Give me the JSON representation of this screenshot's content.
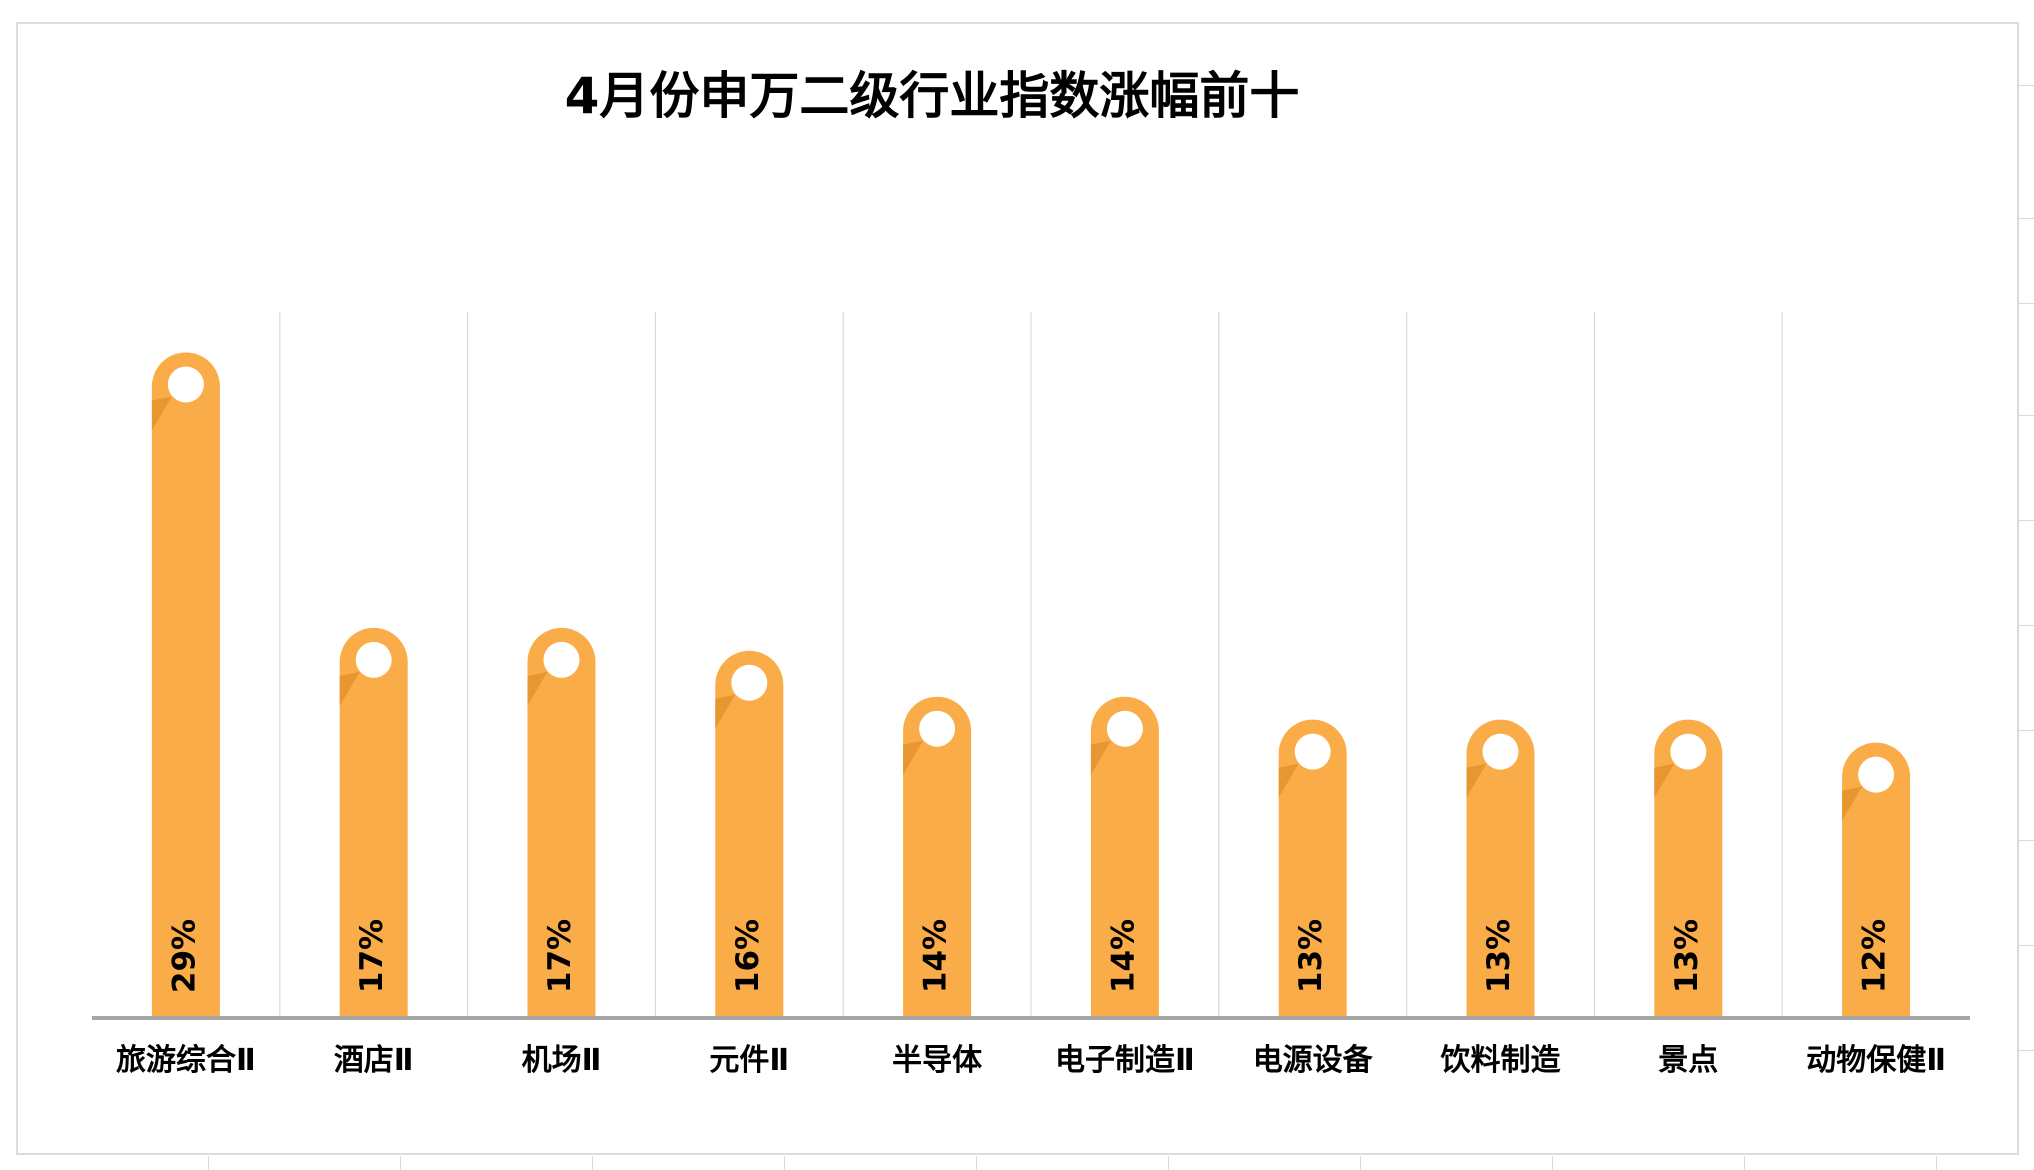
{
  "chart_data": {
    "type": "bar",
    "title": "4月份申万二级行业指数涨幅前十",
    "categories": [
      "旅游综合Ⅱ",
      "酒店Ⅱ",
      "机场Ⅱ",
      "元件Ⅱ",
      "半导体",
      "电子制造Ⅱ",
      "电源设备",
      "饮料制造",
      "景点",
      "动物保健Ⅱ"
    ],
    "values": [
      29,
      17,
      17,
      16,
      14,
      14,
      13,
      13,
      13,
      12
    ],
    "value_labels": [
      "29%",
      "17%",
      "17%",
      "16%",
      "14%",
      "14%",
      "13%",
      "13%",
      "13%",
      "12%"
    ],
    "units": "%",
    "ylim": [
      0,
      30
    ],
    "grid": "vertical-separators",
    "legend": "none",
    "xlabel": "",
    "ylabel": ""
  },
  "colors": {
    "bar": "#F9AC48",
    "bar_shadow": "#E6942E",
    "marker": "#FFFFFF",
    "axis": "#A6A6A6",
    "gridline": "#D9D9D9",
    "text": "#000000"
  }
}
